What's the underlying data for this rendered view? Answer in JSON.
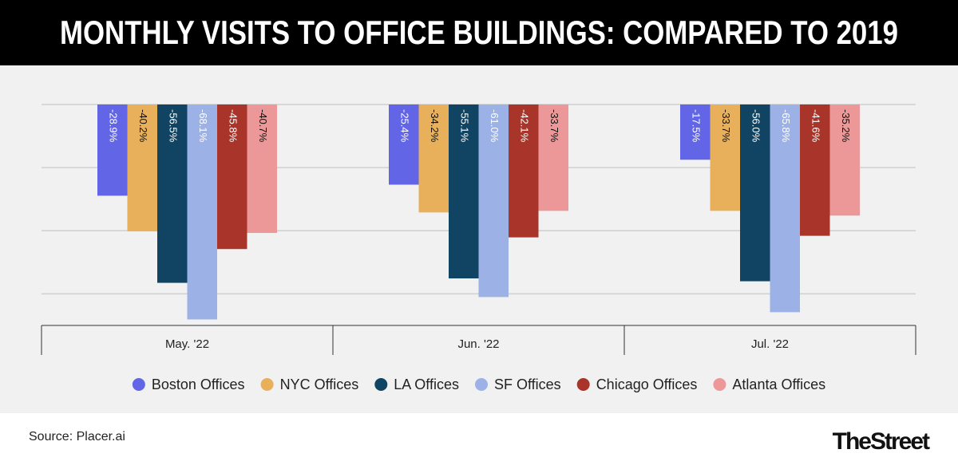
{
  "chart_data": {
    "type": "bar",
    "title": "MONTHLY VISITS TO OFFICE BUILDINGS: COMPARED TO 2019",
    "categories": [
      "May. '22",
      "Jun. '22",
      "Jul. '22"
    ],
    "series": [
      {
        "name": "Boston Offices",
        "color": "#6165e6",
        "values": [
          -28.9,
          -25.4,
          -17.5
        ],
        "value_labels": [
          "-28.9%",
          "-25.4%",
          "-17.5%"
        ]
      },
      {
        "name": "NYC Offices",
        "color": "#e8b05b",
        "values": [
          -40.2,
          -34.2,
          -33.7
        ],
        "value_labels": [
          "-40.2%",
          "-34.2%",
          "-33.7%"
        ]
      },
      {
        "name": "LA Offices",
        "color": "#104462",
        "values": [
          -56.5,
          -55.1,
          -56.0
        ],
        "value_labels": [
          "-56.5%",
          "-55.1%",
          "-56.0%"
        ]
      },
      {
        "name": "SF Offices",
        "color": "#9cb1e6",
        "values": [
          -68.1,
          -61.0,
          -65.8
        ],
        "value_labels": [
          "-68.1%",
          "-61.0%",
          "-65.8%"
        ]
      },
      {
        "name": "Chicago Offices",
        "color": "#a9352a",
        "values": [
          -45.8,
          -42.1,
          -41.6
        ],
        "value_labels": [
          "-45.8%",
          "-42.1%",
          "-41.6%"
        ]
      },
      {
        "name": "Atlanta Offices",
        "color": "#ec9898",
        "values": [
          -40.7,
          -33.7,
          -35.2
        ],
        "value_labels": [
          "-40.7%",
          "-33.7%",
          "-35.2%"
        ]
      }
    ],
    "ylim": [
      -70,
      0
    ],
    "yticks": [
      0,
      -20,
      -40,
      -60
    ],
    "grid": true,
    "source": "Source: Placer.ai",
    "brand": "TheStreet"
  }
}
